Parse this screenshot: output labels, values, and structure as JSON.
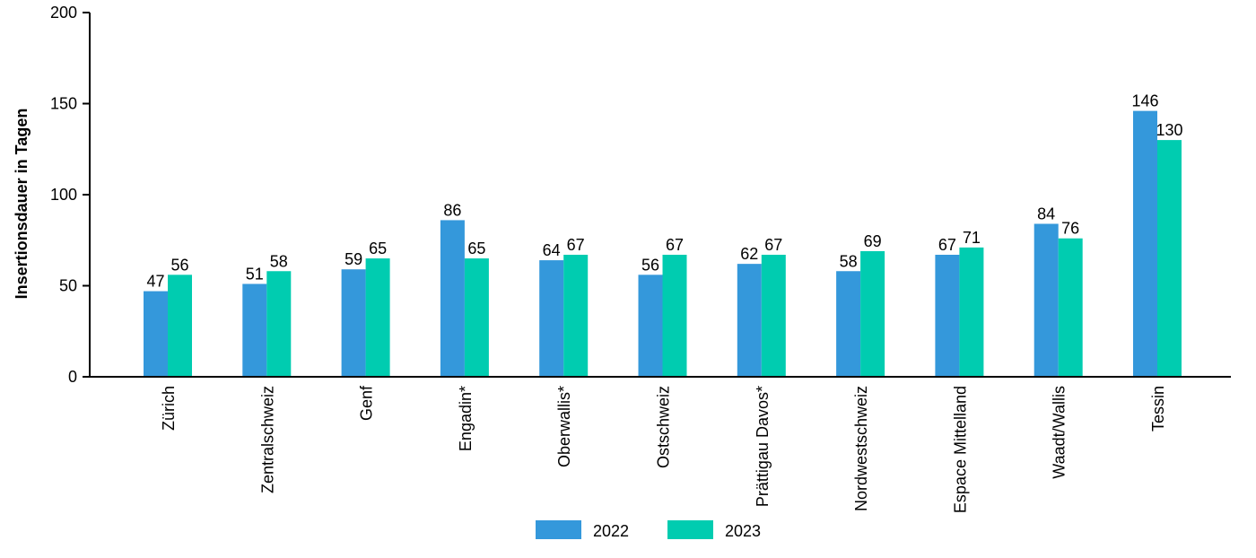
{
  "chart_data": {
    "type": "bar",
    "title": "",
    "xlabel": "",
    "ylabel": "Insertionsdauer in Tagen",
    "ylim": [
      0,
      200
    ],
    "yticks": [
      0,
      50,
      100,
      150,
      200
    ],
    "grid": false,
    "legend_position": "bottom-center",
    "categories": [
      "Zürich",
      "Zentralschweiz",
      "Genf",
      "Engadin*",
      "Oberwallis*",
      "Ostschweiz",
      "Prättigau Davos*",
      "Nordwestschweiz",
      "Espace Mittelland",
      "Waadt/Wallis",
      "Tessin"
    ],
    "series": [
      {
        "name": "2022",
        "color": "#3498db",
        "values": [
          47,
          51,
          59,
          86,
          64,
          56,
          62,
          58,
          67,
          84,
          146
        ]
      },
      {
        "name": "2023",
        "color": "#00ccb0",
        "values": [
          56,
          58,
          65,
          65,
          67,
          67,
          67,
          69,
          71,
          76,
          130
        ]
      }
    ]
  }
}
